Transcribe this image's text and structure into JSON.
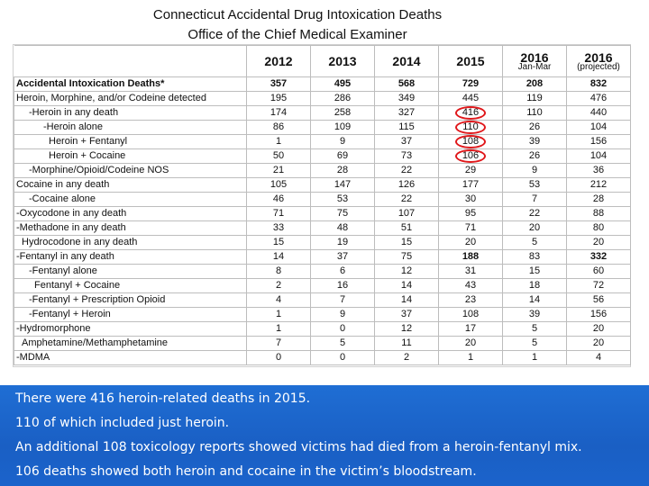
{
  "title": {
    "line1": "Connecticut Accidental Drug Intoxication Deaths",
    "line2": "Office of the Chief Medical Examiner"
  },
  "table": {
    "headers": [
      {
        "year": "2012",
        "sub": ""
      },
      {
        "year": "2013",
        "sub": ""
      },
      {
        "year": "2014",
        "sub": ""
      },
      {
        "year": "2015",
        "sub": ""
      },
      {
        "year": "2016",
        "sub": "Jan-Mar"
      },
      {
        "year": "2016",
        "sub": "(projected)"
      }
    ],
    "rows": [
      {
        "label": "Accidental Intoxication Deaths*",
        "values": [
          "357",
          "495",
          "568",
          "729",
          "208",
          "832"
        ],
        "bold": true
      },
      {
        "label": "Heroin, Morphine, and/or Codeine detected",
        "values": [
          "195",
          "286",
          "349",
          "445",
          "119",
          "476"
        ]
      },
      {
        "label": "-Heroin in any death",
        "values": [
          "174",
          "258",
          "327",
          "416",
          "110",
          "440"
        ],
        "indent": 14
      },
      {
        "label": "-Heroin alone",
        "values": [
          "86",
          "109",
          "115",
          "110",
          "26",
          "104"
        ],
        "indent": 30
      },
      {
        "label": "Heroin + Fentanyl",
        "values": [
          "1",
          "9",
          "37",
          "108",
          "39",
          "156"
        ],
        "indent": 36
      },
      {
        "label": "Heroin + Cocaine",
        "values": [
          "50",
          "69",
          "73",
          "106",
          "26",
          "104"
        ],
        "indent": 36
      },
      {
        "label": "-Morphine/Opioid/Codeine NOS",
        "values": [
          "21",
          "28",
          "22",
          "29",
          "9",
          "36"
        ],
        "indent": 14
      },
      {
        "label": "Cocaine in any death",
        "values": [
          "105",
          "147",
          "126",
          "177",
          "53",
          "212"
        ]
      },
      {
        "label": "-Cocaine alone",
        "values": [
          "46",
          "53",
          "22",
          "30",
          "7",
          "28"
        ],
        "indent": 14
      },
      {
        "label": "-Oxycodone in any death",
        "values": [
          "71",
          "75",
          "107",
          "95",
          "22",
          "88"
        ]
      },
      {
        "label": "-Methadone in any death",
        "values": [
          "33",
          "48",
          "51",
          "71",
          "20",
          "80"
        ]
      },
      {
        "label": "Hydrocodone in any death",
        "values": [
          "15",
          "19",
          "15",
          "20",
          "5",
          "20"
        ],
        "indent": 6
      },
      {
        "label": "-Fentanyl in any death",
        "values": [
          "14",
          "37",
          "75",
          "188",
          "83",
          "332"
        ],
        "bold_cols": [
          3,
          5
        ]
      },
      {
        "label": "-Fentanyl alone",
        "values": [
          "8",
          "6",
          "12",
          "31",
          "15",
          "60"
        ],
        "indent": 14
      },
      {
        "label": "Fentanyl + Cocaine",
        "values": [
          "2",
          "16",
          "14",
          "43",
          "18",
          "72"
        ],
        "indent": 20
      },
      {
        "label": "-Fentanyl + Prescription Opioid",
        "values": [
          "4",
          "7",
          "14",
          "23",
          "14",
          "56"
        ],
        "indent": 14
      },
      {
        "label": "-Fentanyl + Heroin",
        "values": [
          "1",
          "9",
          "37",
          "108",
          "39",
          "156"
        ],
        "indent": 14
      },
      {
        "label": "-Hydromorphone",
        "values": [
          "1",
          "0",
          "12",
          "17",
          "5",
          "20"
        ]
      },
      {
        "label": "Amphetamine/Methamphetamine",
        "values": [
          "7",
          "5",
          "11",
          "20",
          "5",
          "20"
        ],
        "indent": 6
      },
      {
        "label": "-MDMA",
        "values": [
          "0",
          "0",
          "2",
          "1",
          "1",
          "4"
        ]
      }
    ],
    "circled": [
      [
        2,
        3
      ],
      [
        3,
        3
      ],
      [
        4,
        3
      ],
      [
        5,
        3
      ]
    ]
  },
  "caption": {
    "line1": "There were 416 heroin-related deaths in 2015.",
    "line2": "110 of which included just heroin.",
    "line3": "An additional 108 toxicology reports showed victims had died from a heroin-fentanyl mix.",
    "line4": "106 deaths showed both heroin and cocaine in the victim’s bloodstream."
  },
  "colors": {
    "caption_bg": "#1a5fc4",
    "highlight_circle": "#e0181b"
  }
}
